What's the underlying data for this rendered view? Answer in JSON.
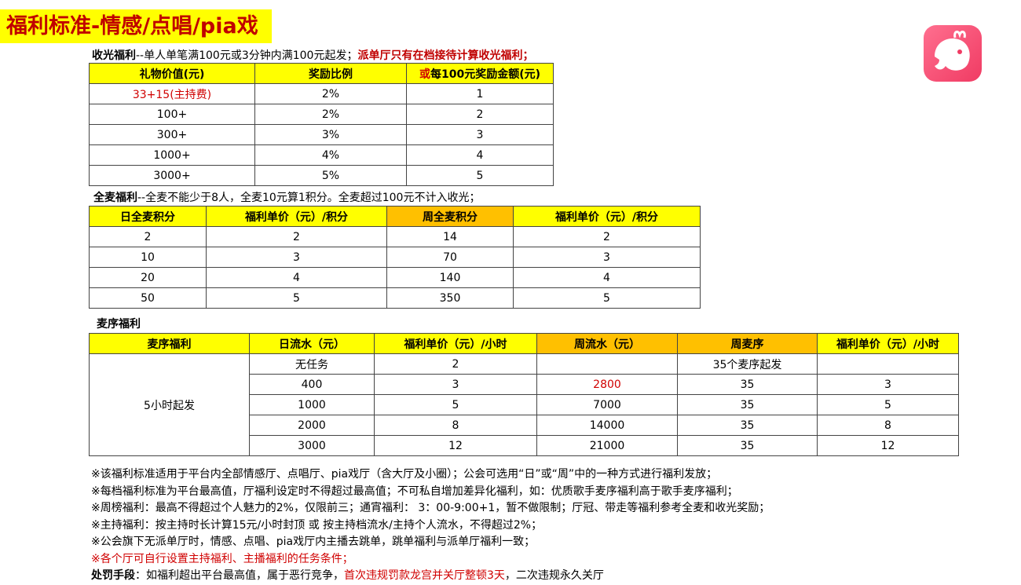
{
  "title": "福利标准-情感/点唱/pia戏",
  "logo_icon": "whale-app-logo",
  "shouguang": {
    "label": "收光福利",
    "desc": "--单人单笔满100元或3分钟内满100元起发；",
    "note": "派单厅只有在档接待计算收光福利；",
    "headers": [
      "礼物价值(元)",
      "奖励比例",
      "或",
      "每100元奖励金额(元)"
    ],
    "rows": [
      [
        "33+15(主持费)",
        "2%",
        "1"
      ],
      [
        "100+",
        "2%",
        "2"
      ],
      [
        "300+",
        "3%",
        "3"
      ],
      [
        "1000+",
        "4%",
        "4"
      ],
      [
        "3000+",
        "5%",
        "5"
      ]
    ]
  },
  "quanmai": {
    "label": "全麦福利",
    "desc": "--全麦不能少于8人，全麦10元算1积分。全麦超过100元不计入收光；",
    "headers": [
      "日全麦积分",
      "福利单价（元）/积分",
      "周全麦积分",
      "福利单价（元）/积分"
    ],
    "rows": [
      [
        "2",
        "2",
        "14",
        "2"
      ],
      [
        "10",
        "3",
        "70",
        "3"
      ],
      [
        "20",
        "4",
        "140",
        "4"
      ],
      [
        "50",
        "5",
        "350",
        "5"
      ]
    ]
  },
  "maixu": {
    "label": "麦序福利",
    "headers": [
      "麦序福利",
      "日流水（元）",
      "福利单价（元）/小时",
      "周流水（元）",
      "周麦序",
      "福利单价（元）/小时"
    ],
    "merged": "5小时起发",
    "rows": [
      [
        "无任务",
        "2",
        "",
        "35个麦序起发",
        ""
      ],
      [
        "400",
        "3",
        "2800",
        "35",
        "3"
      ],
      [
        "1000",
        "5",
        "7000",
        "35",
        "5"
      ],
      [
        "2000",
        "8",
        "14000",
        "35",
        "8"
      ],
      [
        "3000",
        "12",
        "21000",
        "35",
        "12"
      ]
    ]
  },
  "notes": [
    "※该福利标准适用于平台内全部情感厅、点唱厅、pia戏厅（含大厅及小圈）；公会可选用“日”或“周”中的一种方式进行福利发放；",
    "※每档福利标准为平台最高值，厅福利设定时不得超过最高值；不可私自增加差异化福利，如：优质歌手麦序福利高于歌手麦序福利；",
    "※周榜福利：最高不得超过个人魅力的2%，仅限前三；通宵福利： 3：00-9:00+1，暂不做限制；厅冠、带走等福利参考全麦和收光奖励；",
    "※主持福利：按主持时长计算15元/小时封顶 或 按主持档流水/主持个人流水，不得超过2%；",
    "※公会旗下无派单厅时，情感、点唱、pia戏厅内主播去跳单，跳单福利与派单厅福利一致；",
    "※各个厅可自行设置主持福利、主播福利的任务条件；"
  ],
  "penalty": {
    "label": "处罚手段",
    "text1": "：如福利超出平台最高值，属于恶行竞争，",
    "red": "首次违规罚款龙宫并关厅整顿3天",
    "text2": "，二次违规永久关厅"
  }
}
